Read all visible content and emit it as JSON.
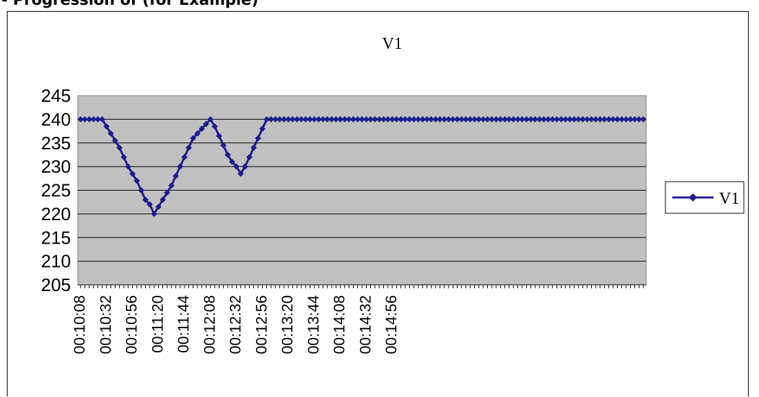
{
  "page": {
    "heading_fragment": "- Progression of  (for Example)"
  },
  "chart_data": {
    "type": "line",
    "title": "V1",
    "xlabel": "",
    "ylabel": "",
    "ylim": [
      205,
      245
    ],
    "yticks": [
      205,
      210,
      215,
      220,
      225,
      230,
      235,
      240,
      245
    ],
    "grid": true,
    "legend_position": "right",
    "x_start": "00:10:08",
    "x_step_seconds": 4,
    "tick_labels": [
      "00:10:08",
      "00:10:32",
      "00:10:56",
      "00:11:20",
      "00:11:44",
      "00:12:08",
      "00:12:32",
      "00:12:56",
      "00:13:20",
      "00:13:44",
      "00:14:08",
      "00:14:32",
      "00:14:56"
    ],
    "series": [
      {
        "name": "V1",
        "color": "#1c1c8c",
        "marker": "diamond",
        "values": [
          240,
          240,
          240,
          240,
          240,
          240,
          238.5,
          237,
          235.5,
          234,
          232,
          230,
          228.5,
          227,
          225,
          223,
          222,
          220,
          221.5,
          223,
          224.5,
          226,
          228,
          230,
          232,
          234,
          236,
          237,
          238,
          239,
          240,
          238.5,
          236.5,
          234.5,
          232.5,
          231,
          230,
          228.5,
          230,
          232,
          234,
          236,
          238,
          240,
          240,
          240,
          240,
          240,
          240,
          240,
          240,
          240,
          240,
          240,
          240,
          240,
          240,
          240,
          240,
          240,
          240,
          240,
          240,
          240,
          240,
          240,
          240,
          240,
          240,
          240,
          240,
          240,
          240,
          240,
          240,
          240,
          240,
          240,
          240,
          240,
          240,
          240,
          240,
          240,
          240,
          240,
          240,
          240,
          240,
          240,
          240,
          240,
          240,
          240,
          240,
          240,
          240,
          240,
          240,
          240,
          240,
          240,
          240,
          240,
          240,
          240,
          240,
          240,
          240,
          240,
          240,
          240,
          240,
          240,
          240,
          240,
          240,
          240,
          240,
          240,
          240,
          240,
          240,
          240,
          240,
          240,
          240,
          240,
          240,
          240,
          240
        ]
      }
    ]
  }
}
